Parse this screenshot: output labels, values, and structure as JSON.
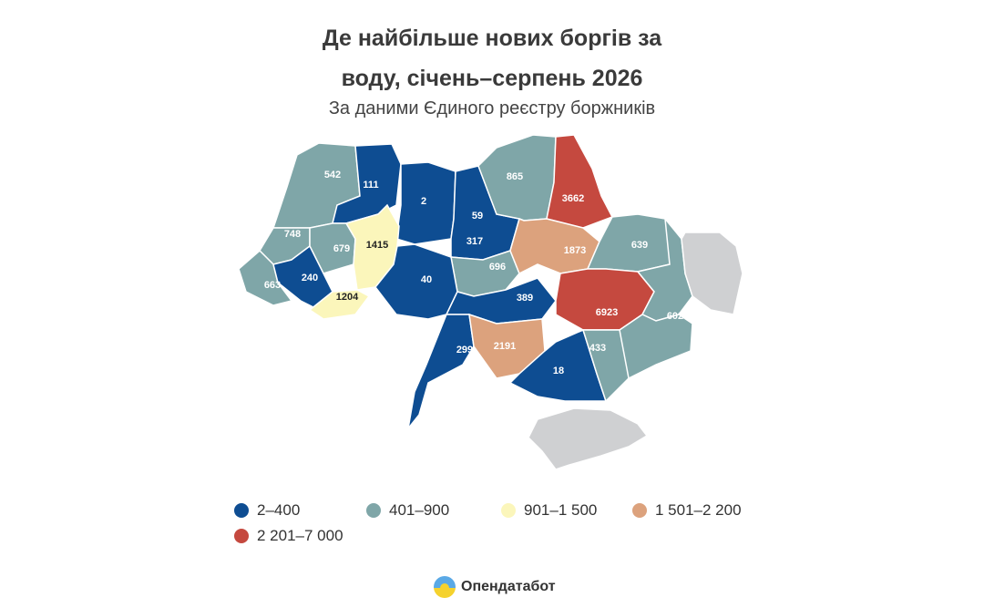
{
  "title_line1": "Де найбільше нових боргів за",
  "title_line2": "воду, січень–серпень 2026",
  "subtitle": "За даними Єдиного реєстру боржників",
  "legend": [
    {
      "label": "2–400",
      "color": "#0e4d92"
    },
    {
      "label": "401–900",
      "color": "#7fa6a8"
    },
    {
      "label": "901–1 500",
      "color": "#fbf6bb"
    },
    {
      "label": "1 501–2 200",
      "color": "#dca27d"
    },
    {
      "label": "2 201–7 000",
      "color": "#c5493f"
    }
  ],
  "colors": {
    "gray": "#cfd0d2",
    "dark_blue": "#0e4d92",
    "teal": "#7fa6a8",
    "yellow": "#fbf6bb",
    "peach": "#dca27d",
    "red": "#c5493f"
  },
  "region_values": [
    "542",
    "111",
    "2",
    "865",
    "3662",
    "748",
    "679",
    "1415",
    "59",
    "317",
    "639",
    "1873",
    "663",
    "240",
    "40",
    "696",
    "1204",
    "389",
    "6923",
    "602",
    "299",
    "2191",
    "433",
    "18"
  ],
  "brand": {
    "name": "Опендатабот",
    "icon": "sun-logo-icon"
  }
}
